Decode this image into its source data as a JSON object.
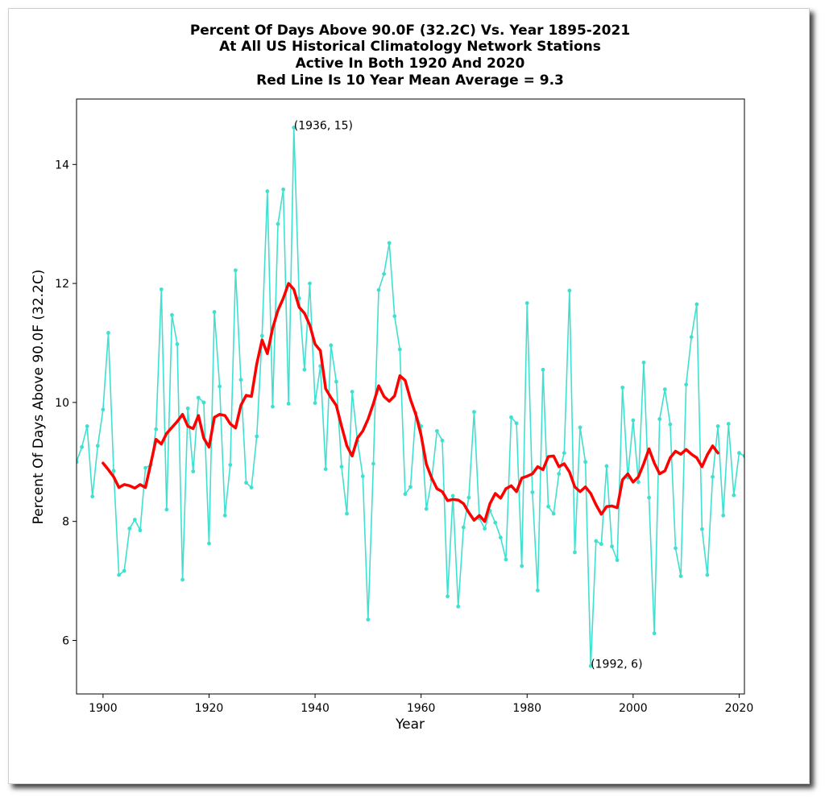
{
  "chart_data": {
    "type": "line",
    "title_lines": [
      "Percent Of Days Above 90.0F (32.2C) Vs. Year 1895-2021",
      "At All US Historical Climatology Network Stations",
      "Active In Both 1920 And 2020",
      "Red Line Is 10 Year Mean  Average = 9.3"
    ],
    "xlabel": "Year",
    "ylabel": "Percent Of Days Above 90.0F (32.2C)",
    "xlim": [
      1895,
      2021
    ],
    "ylim": [
      5.1,
      15.1
    ],
    "xticks": [
      1900,
      1920,
      1940,
      1960,
      1980,
      2000,
      2020
    ],
    "yticks": [
      6,
      8,
      10,
      12,
      14
    ],
    "grid": false,
    "series": [
      {
        "color": "#40e0d0",
        "marker": "dot",
        "x": [
          1895,
          1896,
          1897,
          1898,
          1899,
          1900,
          1901,
          1902,
          1903,
          1904,
          1905,
          1906,
          1907,
          1908,
          1909,
          1910,
          1911,
          1912,
          1913,
          1914,
          1915,
          1916,
          1917,
          1918,
          1919,
          1920,
          1921,
          1922,
          1923,
          1924,
          1925,
          1926,
          1927,
          1928,
          1929,
          1930,
          1931,
          1932,
          1933,
          1934,
          1935,
          1936,
          1937,
          1938,
          1939,
          1940,
          1941,
          1942,
          1943,
          1944,
          1945,
          1946,
          1947,
          1948,
          1949,
          1950,
          1951,
          1952,
          1953,
          1954,
          1955,
          1956,
          1957,
          1958,
          1959,
          1960,
          1961,
          1962,
          1963,
          1964,
          1965,
          1966,
          1967,
          1968,
          1969,
          1970,
          1971,
          1972,
          1973,
          1974,
          1975,
          1976,
          1977,
          1978,
          1979,
          1980,
          1981,
          1982,
          1983,
          1984,
          1985,
          1986,
          1987,
          1988,
          1989,
          1990,
          1991,
          1992,
          1993,
          1994,
          1995,
          1996,
          1997,
          1998,
          1999,
          2000,
          2001,
          2002,
          2003,
          2004,
          2005,
          2006,
          2007,
          2008,
          2009,
          2010,
          2011,
          2012,
          2013,
          2014,
          2015,
          2016,
          2017,
          2018,
          2019,
          2020,
          2021
        ],
        "y": [
          9.0,
          9.25,
          9.6,
          8.42,
          9.27,
          9.88,
          11.17,
          8.85,
          7.1,
          7.17,
          7.88,
          8.03,
          7.85,
          8.9,
          8.95,
          9.55,
          11.9,
          8.2,
          11.47,
          10.98,
          7.02,
          9.9,
          8.84,
          10.08,
          10.0,
          7.63,
          11.52,
          10.27,
          8.1,
          8.95,
          12.22,
          10.38,
          8.65,
          8.57,
          9.43,
          11.12,
          13.55,
          9.93,
          13.0,
          13.58,
          9.98,
          14.62,
          11.75,
          10.55,
          12.0,
          9.99,
          10.61,
          8.88,
          10.96,
          10.35,
          8.92,
          8.13,
          10.18,
          9.35,
          8.76,
          6.35,
          8.97,
          11.89,
          12.16,
          12.68,
          11.45,
          10.89,
          8.46,
          8.58,
          9.82,
          9.6,
          8.21,
          8.7,
          9.52,
          9.36,
          6.74,
          8.43,
          6.57,
          7.9,
          8.4,
          9.84,
          8.05,
          7.88,
          8.18,
          7.98,
          7.73,
          7.36,
          9.75,
          9.65,
          7.25,
          11.67,
          8.49,
          6.84,
          10.55,
          8.25,
          8.13,
          8.8,
          9.15,
          11.88,
          7.48,
          9.58,
          9.0,
          5.57,
          7.67,
          7.62,
          8.93,
          7.58,
          7.35,
          10.25,
          8.74,
          9.7,
          8.66,
          10.67,
          8.4,
          6.12,
          9.72,
          10.22,
          9.63,
          7.55,
          7.08,
          10.3,
          11.1,
          11.65,
          7.87,
          7.1,
          8.75,
          9.6,
          8.1,
          9.64,
          8.44,
          9.15,
          9.1
        ]
      },
      {
        "name": "10 Year Mean",
        "color": "#ff0000",
        "x": [
          1900,
          1901,
          1902,
          1903,
          1904,
          1905,
          1906,
          1907,
          1908,
          1909,
          1910,
          1911,
          1912,
          1913,
          1914,
          1915,
          1916,
          1917,
          1918,
          1919,
          1920,
          1921,
          1922,
          1923,
          1924,
          1925,
          1926,
          1927,
          1928,
          1929,
          1930,
          1931,
          1932,
          1933,
          1934,
          1935,
          1936,
          1937,
          1938,
          1939,
          1940,
          1941,
          1942,
          1943,
          1944,
          1945,
          1946,
          1947,
          1948,
          1949,
          1950,
          1951,
          1952,
          1953,
          1954,
          1955,
          1956,
          1957,
          1958,
          1959,
          1960,
          1961,
          1962,
          1963,
          1964,
          1965,
          1966,
          1967,
          1968,
          1969,
          1970,
          1971,
          1972,
          1973,
          1974,
          1975,
          1976,
          1977,
          1978,
          1979,
          1980,
          1981,
          1982,
          1983,
          1984,
          1985,
          1986,
          1987,
          1988,
          1989,
          1990,
          1991,
          1992,
          1993,
          1994,
          1995,
          1996,
          1997,
          1998,
          1999,
          2000,
          2001,
          2002,
          2003,
          2004,
          2005,
          2006,
          2007,
          2008,
          2009,
          2010,
          2011,
          2012,
          2013,
          2014,
          2015,
          2016
        ],
        "y": [
          8.98,
          8.87,
          8.75,
          8.57,
          8.62,
          8.6,
          8.56,
          8.62,
          8.57,
          8.97,
          9.38,
          9.3,
          9.48,
          9.58,
          9.68,
          9.8,
          9.6,
          9.56,
          9.78,
          9.4,
          9.25,
          9.75,
          9.8,
          9.78,
          9.64,
          9.57,
          9.95,
          10.12,
          10.1,
          10.65,
          11.05,
          10.82,
          11.25,
          11.55,
          11.75,
          12.0,
          11.9,
          11.6,
          11.5,
          11.3,
          10.98,
          10.87,
          10.23,
          10.08,
          9.95,
          9.6,
          9.27,
          9.1,
          9.4,
          9.52,
          9.72,
          9.98,
          10.28,
          10.1,
          10.02,
          10.11,
          10.45,
          10.37,
          10.05,
          9.8,
          9.45,
          8.96,
          8.73,
          8.55,
          8.5,
          8.35,
          8.37,
          8.36,
          8.3,
          8.15,
          8.02,
          8.1,
          8.0,
          8.3,
          8.47,
          8.39,
          8.55,
          8.6,
          8.5,
          8.73,
          8.76,
          8.8,
          8.92,
          8.87,
          9.09,
          9.1,
          8.92,
          8.97,
          8.83,
          8.58,
          8.5,
          8.58,
          8.47,
          8.28,
          8.12,
          8.25,
          8.26,
          8.23,
          8.7,
          8.8,
          8.66,
          8.75,
          8.97,
          9.22,
          8.98,
          8.8,
          8.85,
          9.07,
          9.18,
          9.13,
          9.21,
          9.13,
          9.07,
          8.92,
          9.12,
          9.27,
          9.15
        ]
      }
    ],
    "annotations": [
      {
        "text": "(1936, 15)",
        "x": 1936,
        "y": 14.62
      },
      {
        "text": "(1992, 6)",
        "x": 1992,
        "y": 5.57
      }
    ]
  }
}
